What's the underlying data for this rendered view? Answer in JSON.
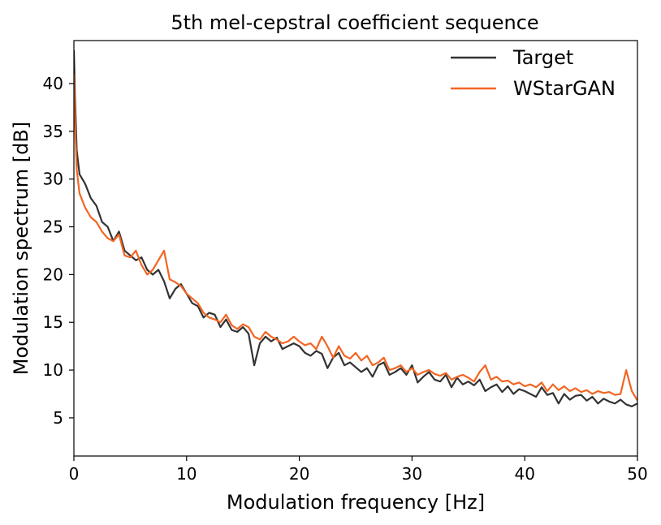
{
  "chart_data": {
    "type": "line",
    "title": "5th mel-cepstral coefficient sequence",
    "xlabel": "Modulation frequency [Hz]",
    "ylabel": "Modulation spectrum [dB]",
    "xlim": [
      0,
      50
    ],
    "ylim": [
      1,
      44.5
    ],
    "xticks": [
      0,
      10,
      20,
      30,
      40,
      50
    ],
    "yticks": [
      5,
      10,
      15,
      20,
      25,
      30,
      35,
      40
    ],
    "xtick_labels": [
      "0",
      "10",
      "20",
      "30",
      "40",
      "50"
    ],
    "ytick_labels": [
      "5",
      "10",
      "15",
      "20",
      "25",
      "30",
      "35",
      "40"
    ],
    "grid": false,
    "legend_position": "top-right",
    "series": [
      {
        "name": "Target",
        "color": "#333333",
        "x": [
          0,
          0.1,
          0.25,
          0.5,
          1,
          1.5,
          2,
          2.5,
          3,
          3.5,
          4,
          4.5,
          5,
          5.5,
          6,
          6.5,
          7,
          7.5,
          8,
          8.5,
          9,
          9.5,
          10,
          10.5,
          11,
          11.5,
          12,
          12.5,
          13,
          13.5,
          14,
          14.5,
          15,
          15.5,
          16,
          16.5,
          17,
          17.5,
          18,
          18.5,
          19,
          19.5,
          20,
          20.5,
          21,
          21.5,
          22,
          22.5,
          23,
          23.5,
          24,
          24.5,
          25,
          25.5,
          26,
          26.5,
          27,
          27.5,
          28,
          28.5,
          29,
          29.5,
          30,
          30.5,
          31,
          31.5,
          32,
          32.5,
          33,
          33.5,
          34,
          34.5,
          35,
          35.5,
          36,
          36.5,
          37,
          37.5,
          38,
          38.5,
          39,
          39.5,
          40,
          40.5,
          41,
          41.5,
          42,
          42.5,
          43,
          43.5,
          44,
          44.5,
          45,
          45.5,
          46,
          46.5,
          47,
          47.5,
          48,
          48.5,
          49,
          49.5,
          50
        ],
        "values": [
          43.5,
          38.5,
          33,
          30.5,
          29.5,
          28,
          27.2,
          25.5,
          25,
          23.5,
          24.5,
          22.5,
          22,
          21.5,
          21.8,
          20.5,
          20,
          20.5,
          19.3,
          17.5,
          18.5,
          19,
          18,
          17,
          16.7,
          15.5,
          16,
          15.8,
          14.5,
          15.3,
          14.2,
          14,
          14.5,
          13.8,
          10.5,
          12.8,
          13.5,
          13,
          13.4,
          12.2,
          12.5,
          12.8,
          12.5,
          11.8,
          11.5,
          12,
          11.7,
          10.2,
          11.3,
          11.8,
          10.5,
          10.8,
          10.3,
          9.8,
          10.2,
          9.3,
          10.5,
          10.8,
          9.5,
          9.8,
          10.2,
          9.5,
          10.5,
          8.7,
          9.3,
          9.8,
          9,
          8.8,
          9.5,
          8.2,
          9.2,
          8.5,
          8.8,
          8.4,
          9,
          7.8,
          8.2,
          8.5,
          7.7,
          8.3,
          7.5,
          8,
          7.8,
          7.5,
          7.2,
          8.2,
          7.4,
          7.6,
          6.5,
          7.5,
          6.9,
          7.3,
          7.4,
          6.8,
          7.2,
          6.5,
          7,
          6.7,
          6.5,
          6.9,
          6.4,
          6.2,
          6.5
        ]
      },
      {
        "name": "WStarGAN",
        "color": "#f26522",
        "x": [
          0,
          0.1,
          0.25,
          0.5,
          1,
          1.5,
          2,
          2.5,
          3,
          3.5,
          4,
          4.5,
          5,
          5.5,
          6,
          6.5,
          7,
          7.5,
          8,
          8.5,
          9,
          9.5,
          10,
          10.5,
          11,
          11.5,
          12,
          12.5,
          13,
          13.5,
          14,
          14.5,
          15,
          15.5,
          16,
          16.5,
          17,
          17.5,
          18,
          18.5,
          19,
          19.5,
          20,
          20.5,
          21,
          21.5,
          22,
          22.5,
          23,
          23.5,
          24,
          24.5,
          25,
          25.5,
          26,
          26.5,
          27,
          27.5,
          28,
          28.5,
          29,
          29.5,
          30,
          30.5,
          31,
          31.5,
          32,
          32.5,
          33,
          33.5,
          34,
          34.5,
          35,
          35.5,
          36,
          36.5,
          37,
          37.5,
          38,
          38.5,
          39,
          39.5,
          40,
          40.5,
          41,
          41.5,
          42,
          42.5,
          43,
          43.5,
          44,
          44.5,
          45,
          45.5,
          46,
          46.5,
          47,
          47.5,
          48,
          48.5,
          49,
          49.5,
          50
        ],
        "values": [
          41,
          36,
          31,
          28.5,
          27,
          26,
          25.5,
          24.5,
          23.8,
          23.5,
          24.2,
          22,
          21.8,
          22.5,
          21,
          20,
          20.5,
          21.5,
          22.5,
          19.5,
          19.2,
          18.8,
          18,
          17.5,
          17,
          16,
          15.5,
          15.3,
          15,
          15.8,
          14.7,
          14.3,
          14.8,
          14.5,
          13.5,
          13.2,
          14,
          13.5,
          13.2,
          12.8,
          13,
          13.5,
          13,
          12.6,
          12.8,
          12.2,
          13.5,
          12.5,
          11.3,
          12.5,
          11.5,
          11.2,
          11.8,
          11,
          11.5,
          10.5,
          10.8,
          11.3,
          10,
          10.2,
          10.5,
          9.8,
          10.2,
          9.5,
          9.8,
          10,
          9.6,
          9.4,
          9.7,
          9,
          9.3,
          9.5,
          9.2,
          8.8,
          9.8,
          10.5,
          9,
          9.3,
          8.8,
          8.9,
          8.5,
          8.7,
          8.3,
          8.5,
          8.2,
          8.7,
          7.8,
          8.5,
          7.9,
          8.3,
          7.8,
          8.1,
          7.7,
          7.9,
          7.5,
          7.8,
          7.6,
          7.7,
          7.4,
          7.5,
          10,
          7.8,
          6.8
        ]
      }
    ]
  }
}
